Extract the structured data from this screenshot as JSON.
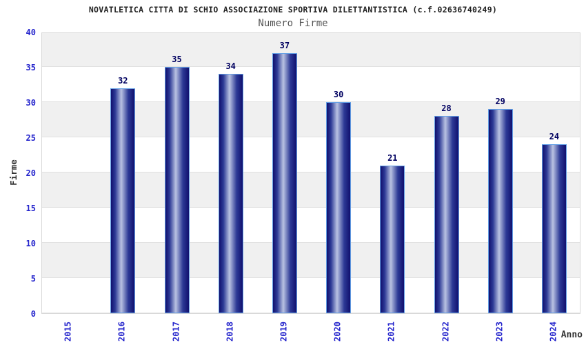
{
  "chart_data": {
    "type": "bar",
    "title": "NOVATLETICA CITTA DI SCHIO ASSOCIAZIONE SPORTIVA DILETTANTISTICA (c.f.02636740249)",
    "subtitle": "Numero Firme",
    "xlabel": "Anno",
    "ylabel": "Firme",
    "categories": [
      "2015",
      "2016",
      "2017",
      "2018",
      "2019",
      "2020",
      "2021",
      "2022",
      "2023",
      "2024"
    ],
    "values": [
      0,
      32,
      35,
      34,
      37,
      30,
      21,
      28,
      29,
      24
    ],
    "bar_labels": [
      "",
      "32",
      "35",
      "34",
      "37",
      "30",
      "21",
      "28",
      "29",
      "24"
    ],
    "ylim": [
      0,
      40
    ],
    "ytick_step": 5,
    "yticks": [
      0,
      5,
      10,
      15,
      20,
      25,
      30,
      35,
      40
    ],
    "grid": "alternating horizontal bands every 5 units with light gridlines",
    "legend": "none",
    "colors": {
      "bar_body_dark": "#10106e",
      "bar_body_mid": "#2d3a96",
      "bar_body_light": "#b9c2e2",
      "bar_border": "#64a0e6",
      "value_label": "#000060",
      "axis_tick_label": "#2424cc",
      "band_gray": "#f0f0f0",
      "band_white": "#ffffff",
      "gridline": "#e0e0e0",
      "plot_border": "#d8d8d8",
      "title_color": "#1f1f1f",
      "subtitle_color": "#555555",
      "axis_title_color": "#333333",
      "background": "#ffffff"
    }
  }
}
